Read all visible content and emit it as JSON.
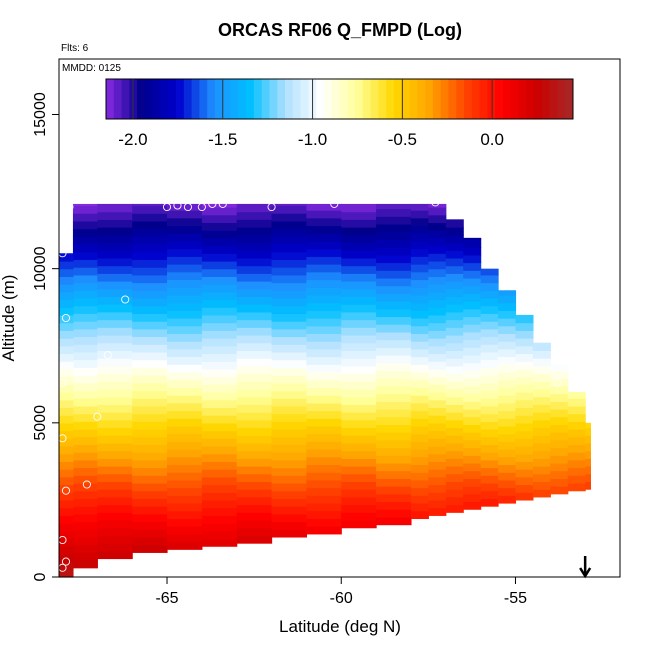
{
  "chart_data": {
    "type": "heatmap",
    "title": "ORCAS RF06 Q_FMPD (Log)",
    "xlabel": "Latitude (deg N)",
    "ylabel": "Altitude (m)",
    "flights_label": "Flts: 6",
    "date_label": "MMDD: 0125",
    "xlim": [
      -68.1,
      -52.0
    ],
    "ylim": [
      0,
      16800
    ],
    "x_ticks": [
      -65,
      -60,
      -55
    ],
    "x_tick_labels": [
      "-65",
      "-60",
      "-55"
    ],
    "y_ticks": [
      0,
      5000,
      10000,
      15000
    ],
    "y_tick_labels": [
      "0",
      "5000",
      "10000",
      "15000"
    ],
    "colorbar": {
      "range": [
        -2.15,
        0.45
      ],
      "ticks": [
        -2.0,
        -1.5,
        -1.0,
        -0.5,
        0.0
      ],
      "tick_labels": [
        "-2.0",
        "-1.5",
        "-1.0",
        "-0.5",
        "0.0"
      ],
      "colors": [
        "#8a2be2",
        "#00008b",
        "#0000cd",
        "#1e90ff",
        "#00bfff",
        "#b0e0ff",
        "#ffffff",
        "#ffff99",
        "#ffd700",
        "#ffa500",
        "#ff4500",
        "#ff0000",
        "#cd0000",
        "#a52a2a"
      ]
    },
    "field": {
      "note_value_profile": "log10 value decreases with altitude",
      "surface_value": 0.35,
      "top_value": -2.12,
      "envelope": [
        [
          -67.7,
          300,
          12100
        ],
        [
          -67.0,
          600,
          12100
        ],
        [
          -66.0,
          800,
          12100
        ],
        [
          -65.0,
          900,
          12100
        ],
        [
          -64.0,
          1000,
          12100
        ],
        [
          -63.0,
          1100,
          12100
        ],
        [
          -62.0,
          1300,
          12100
        ],
        [
          -61.0,
          1400,
          12100
        ],
        [
          -60.0,
          1600,
          12100
        ],
        [
          -59.0,
          1700,
          12100
        ],
        [
          -58.0,
          1900,
          12100
        ],
        [
          -57.5,
          2000,
          12100
        ],
        [
          -57.0,
          2100,
          11600
        ],
        [
          -56.5,
          2200,
          11000
        ],
        [
          -56.0,
          2300,
          10000
        ],
        [
          -55.5,
          2400,
          9300
        ],
        [
          -55.0,
          2500,
          8500
        ],
        [
          -54.5,
          2600,
          7600
        ],
        [
          -54.0,
          2700,
          6900
        ],
        [
          -53.5,
          2800,
          6000
        ],
        [
          -53.0,
          2850,
          5000
        ],
        [
          -52.85,
          2850,
          2600
        ]
      ]
    },
    "observations": [
      [
        -68.0,
        10500
      ],
      [
        -67.8,
        12000
      ],
      [
        -67.9,
        8400
      ],
      [
        -66.2,
        9000
      ],
      [
        -66.7,
        7200
      ],
      [
        -68.0,
        6300
      ],
      [
        -67.0,
        5200
      ],
      [
        -68.0,
        4500
      ],
      [
        -67.3,
        3000
      ],
      [
        -67.9,
        2800
      ],
      [
        -68.0,
        1200
      ],
      [
        -67.9,
        500
      ],
      [
        -68.0,
        300
      ],
      [
        -65.0,
        12000
      ],
      [
        -64.7,
        12050
      ],
      [
        -64.4,
        12000
      ],
      [
        -64.0,
        12000
      ],
      [
        -63.7,
        12100
      ],
      [
        -63.4,
        12100
      ],
      [
        -62.0,
        12000
      ],
      [
        -60.2,
        12100
      ],
      [
        -57.3,
        12150
      ],
      [
        -53.8,
        6300
      ],
      [
        -53.1,
        2600
      ]
    ],
    "arrow_marker_lat": -53.0
  }
}
